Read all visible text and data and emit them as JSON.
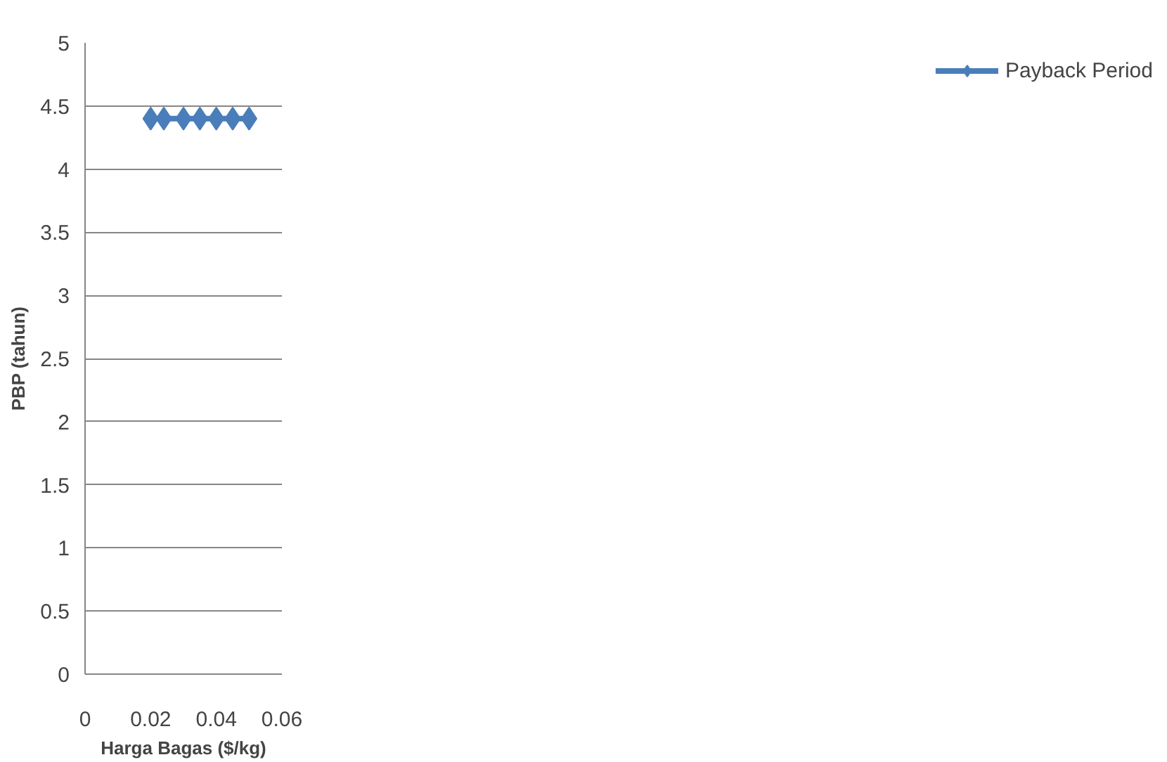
{
  "chart_data": {
    "type": "line",
    "xlabel": "Harga Bagas ($/kg)",
    "ylabel": "PBP (tahun)",
    "xlim": [
      0,
      0.06
    ],
    "xticks": [
      0,
      0.02,
      0.04,
      0.06
    ],
    "ylim": [
      0,
      5
    ],
    "yticks": [
      0,
      0.5,
      1,
      1.5,
      2,
      2.5,
      3,
      3.5,
      4,
      4.5,
      5
    ],
    "grid": "y",
    "legend": "right",
    "marker": "diamond",
    "line_style": "solid",
    "series": [
      {
        "name": "Payback Period",
        "color": "#4a7ebb",
        "x": [
          0.02,
          0.024,
          0.03,
          0.035,
          0.04,
          0.045,
          0.05
        ],
        "values": [
          4.4,
          4.4,
          4.4,
          4.4,
          4.4,
          4.4,
          4.4
        ]
      }
    ]
  }
}
